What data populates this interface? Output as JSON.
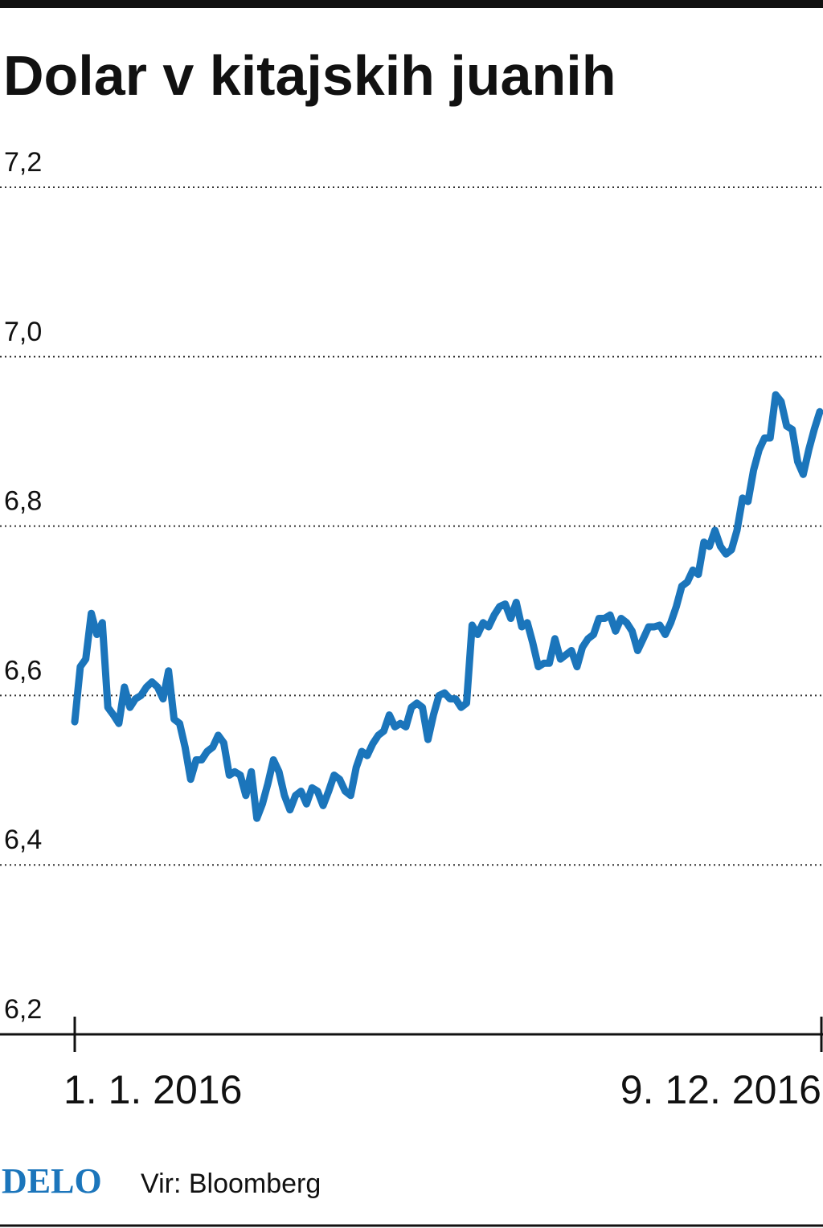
{
  "chart_data": {
    "type": "line",
    "title": "Dolar v kitajskih juanih",
    "logo": "DELO",
    "source": "Vir: Bloomberg",
    "ylim": [
      6.2,
      7.2
    ],
    "yticks": [
      {
        "value": 6.2,
        "label": "6,2"
      },
      {
        "value": 6.4,
        "label": "6,4"
      },
      {
        "value": 6.6,
        "label": "6,6"
      },
      {
        "value": 6.8,
        "label": "6,8"
      },
      {
        "value": 7.0,
        "label": "7,0"
      },
      {
        "value": 7.2,
        "label": "7,2"
      }
    ],
    "grid": true,
    "categories": [
      "1. 1. 2016",
      null,
      null,
      null,
      null,
      null,
      null,
      null,
      null,
      null,
      null,
      null,
      null,
      null,
      null,
      null,
      null,
      null,
      null,
      null,
      null,
      null,
      null,
      null,
      null,
      null,
      null,
      null,
      null,
      null,
      null,
      null,
      null,
      null,
      null,
      null,
      null,
      null,
      null,
      null,
      null,
      null,
      null,
      null,
      null,
      null,
      null,
      null,
      null,
      null,
      null,
      null,
      null,
      null,
      null,
      null,
      null,
      null,
      null,
      null,
      null,
      null,
      null,
      null,
      null,
      null,
      null,
      null,
      null,
      null,
      null,
      null,
      null,
      null,
      null,
      null,
      null,
      null,
      null,
      null,
      null,
      null,
      null,
      null,
      null,
      null,
      null,
      null,
      null,
      null,
      null,
      null,
      null,
      null,
      null,
      null,
      null,
      null,
      null,
      null,
      null,
      null,
      null,
      null,
      null,
      null,
      null,
      null,
      null,
      null,
      null,
      null,
      null,
      null,
      null,
      null,
      null,
      null,
      null,
      null,
      null,
      null,
      null,
      null,
      null,
      null,
      null,
      null,
      null,
      null,
      null,
      null,
      null,
      null,
      null,
      "9. 12. 2016"
    ],
    "series": [
      {
        "color": "#1b75bb",
        "values": [
          6.569,
          6.634,
          6.643,
          6.697,
          6.672,
          6.686,
          6.586,
          6.577,
          6.567,
          6.61,
          6.586,
          6.596,
          6.6,
          6.61,
          6.616,
          6.61,
          6.596,
          6.629,
          6.572,
          6.567,
          6.539,
          6.501,
          6.524,
          6.524,
          6.534,
          6.539,
          6.553,
          6.544,
          6.506,
          6.51,
          6.506,
          6.482,
          6.51,
          6.455,
          6.472,
          6.496,
          6.524,
          6.51,
          6.482,
          6.465,
          6.482,
          6.487,
          6.472,
          6.491,
          6.487,
          6.47,
          6.487,
          6.506,
          6.501,
          6.487,
          6.482,
          6.515,
          6.534,
          6.529,
          6.543,
          6.553,
          6.558,
          6.577,
          6.563,
          6.567,
          6.563,
          6.586,
          6.591,
          6.586,
          6.548,
          6.577,
          6.6,
          6.603,
          6.596,
          6.596,
          6.586,
          6.591,
          6.683,
          6.672,
          6.686,
          6.681,
          6.695,
          6.705,
          6.708,
          6.691,
          6.71,
          6.681,
          6.686,
          6.662,
          6.634,
          6.638,
          6.638,
          6.667,
          6.643,
          6.648,
          6.653,
          6.634,
          6.657,
          6.667,
          6.672,
          6.691,
          6.691,
          6.695,
          6.676,
          6.691,
          6.686,
          6.676,
          6.653,
          6.667,
          6.681,
          6.681,
          6.683,
          6.672,
          6.686,
          6.705,
          6.729,
          6.734,
          6.748,
          6.743,
          6.781,
          6.776,
          6.795,
          6.776,
          6.767,
          6.772,
          6.795,
          6.833,
          6.829,
          6.866,
          6.89,
          6.904,
          6.904,
          6.955,
          6.947,
          6.918,
          6.914,
          6.876,
          6.861,
          6.89,
          6.914,
          6.935
        ]
      }
    ]
  }
}
